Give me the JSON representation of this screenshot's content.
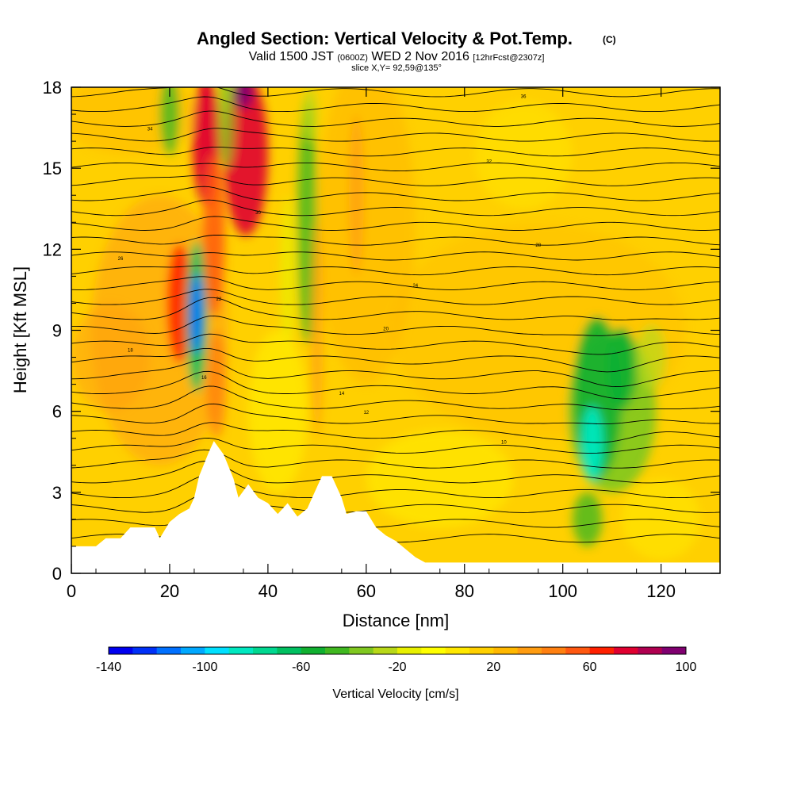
{
  "header": {
    "title": "Angled Section: Vertical Velocity & Pot.Temp.",
    "title_units": "(C)",
    "valid_prefix": "Valid 1500 JST",
    "valid_utc": "(0600Z)",
    "valid_date": "WED 2 Nov 2016",
    "forecast": "[12hrFcst@2307z]",
    "slice": "slice X,Y= 92,59@135°"
  },
  "chart_data": {
    "type": "heatmap",
    "xlabel": "Distance [nm]",
    "ylabel": "Height [Kft MSL]",
    "xlim": [
      0,
      132
    ],
    "ylim": [
      0,
      18
    ],
    "x_ticks": [
      0,
      20,
      40,
      60,
      80,
      100,
      120
    ],
    "y_ticks": [
      0,
      3,
      6,
      9,
      12,
      15,
      18
    ],
    "colorbar": {
      "label": "Vertical Velocity [cm/s]",
      "min": -140,
      "max": 100,
      "step": 10,
      "tick_values": [
        -140,
        -100,
        -60,
        -20,
        20,
        60,
        100
      ],
      "colors": [
        "#0000f0",
        "#0030f8",
        "#0070ff",
        "#00a8ff",
        "#00e0ff",
        "#00e8c0",
        "#00d890",
        "#00c060",
        "#10b030",
        "#40b820",
        "#80c820",
        "#b8d818",
        "#e8f000",
        "#ffff00",
        "#ffe800",
        "#ffd000",
        "#ffb800",
        "#ff9c10",
        "#ff8010",
        "#ff5810",
        "#ff2000",
        "#e00030",
        "#b00050",
        "#800070"
      ]
    },
    "terrain": [
      [
        0,
        1.0
      ],
      [
        5,
        1.0
      ],
      [
        7,
        1.3
      ],
      [
        10,
        1.3
      ],
      [
        12,
        1.7
      ],
      [
        17,
        1.7
      ],
      [
        18,
        1.3
      ],
      [
        20,
        1.9
      ],
      [
        22,
        2.2
      ],
      [
        24,
        2.4
      ],
      [
        25,
        2.8
      ],
      [
        26,
        3.6
      ],
      [
        28,
        4.5
      ],
      [
        29,
        4.9
      ],
      [
        31,
        4.4
      ],
      [
        33,
        3.5
      ],
      [
        34,
        2.8
      ],
      [
        36,
        3.3
      ],
      [
        38,
        2.8
      ],
      [
        40,
        2.6
      ],
      [
        42,
        2.2
      ],
      [
        44,
        2.6
      ],
      [
        46,
        2.1
      ],
      [
        48,
        2.4
      ],
      [
        50,
        3.2
      ],
      [
        51,
        3.6
      ],
      [
        53,
        3.6
      ],
      [
        55,
        2.8
      ],
      [
        56,
        2.2
      ],
      [
        58,
        2.3
      ],
      [
        60,
        2.3
      ],
      [
        62,
        1.7
      ],
      [
        64,
        1.4
      ],
      [
        66,
        1.2
      ],
      [
        68,
        0.9
      ],
      [
        70,
        0.6
      ],
      [
        72,
        0.4
      ],
      [
        132,
        0.4
      ]
    ],
    "theta_contours": {
      "labels": [
        "10",
        "12",
        "14",
        "16",
        "18",
        "20",
        "22",
        "24",
        "26",
        "28",
        "30",
        "32",
        "34",
        "36"
      ]
    }
  }
}
